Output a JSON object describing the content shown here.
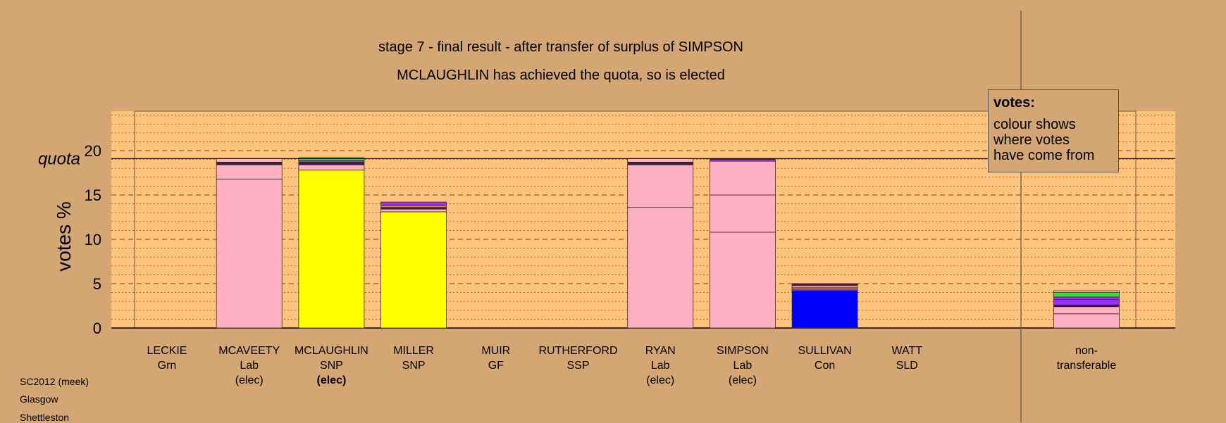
{
  "chart_data": {
    "type": "bar",
    "stacked": true,
    "title": "stage 7 - final result - after transfer of surplus of SIMPSON",
    "subtitle": "MCLAUGHLIN has achieved the quota, so is elected",
    "ylabel": "votes %",
    "ylim": [
      0,
      24
    ],
    "yticks": [
      0,
      5,
      10,
      15,
      20
    ],
    "quota": 19.1,
    "quota_label": "quota",
    "grid": true,
    "colors": {
      "Lab": "#ffafc3",
      "SNP": "#ffff00",
      "Con": "#0000ff",
      "dark": "#3a1a50",
      "purple": "#9b30ff",
      "green": "#33dd33",
      "orange": "#ff7f3a"
    },
    "candidates": [
      {
        "name": "LECKIE",
        "party": "Grn",
        "status": "",
        "segments": []
      },
      {
        "name": "MCAVEETY",
        "party": "Lab",
        "status": "(elec)",
        "status_bold": false,
        "segments": [
          {
            "from": "Lab",
            "value": 16.8
          },
          {
            "from": "Lab",
            "value": 1.6
          },
          {
            "from": "dark",
            "value": 0.3
          },
          {
            "from": "Lab",
            "value": 0.4
          }
        ]
      },
      {
        "name": "MCLAUGHLIN",
        "party": "SNP",
        "status": "(elec)",
        "status_bold": true,
        "segments": [
          {
            "from": "SNP",
            "value": 17.8
          },
          {
            "from": "Lab",
            "value": 0.6
          },
          {
            "from": "dark",
            "value": 0.3
          },
          {
            "from": "purple",
            "value": 0.2
          },
          {
            "from": "green",
            "value": 0.3
          }
        ]
      },
      {
        "name": "MILLER",
        "party": "SNP",
        "status": "",
        "segments": [
          {
            "from": "SNP",
            "value": 13.1
          },
          {
            "from": "Lab",
            "value": 0.3
          },
          {
            "from": "dark",
            "value": 0.2
          },
          {
            "from": "orange",
            "value": 0.2
          },
          {
            "from": "purple",
            "value": 0.4
          }
        ]
      },
      {
        "name": "MUIR",
        "party": "GF",
        "status": "",
        "segments": []
      },
      {
        "name": "RUTHERFORD",
        "party": "SSP",
        "status": "",
        "segments": []
      },
      {
        "name": "RYAN",
        "party": "Lab",
        "status": "(elec)",
        "status_bold": false,
        "segments": [
          {
            "from": "Lab",
            "value": 13.6
          },
          {
            "from": "Lab",
            "value": 4.8
          },
          {
            "from": "dark",
            "value": 0.3
          },
          {
            "from": "Lab",
            "value": 0.4
          }
        ]
      },
      {
        "name": "SIMPSON",
        "party": "Lab",
        "status": "(elec)",
        "status_bold": false,
        "segments": [
          {
            "from": "Lab",
            "value": 10.8
          },
          {
            "from": "Lab",
            "value": 4.2
          },
          {
            "from": "Lab",
            "value": 3.8
          },
          {
            "from": "purple",
            "value": 0.2
          },
          {
            "from": "dark",
            "value": 0.1
          }
        ]
      },
      {
        "name": "SULLIVAN",
        "party": "Con",
        "status": "",
        "segments": [
          {
            "from": "Con",
            "value": 4.2
          },
          {
            "from": "purple",
            "value": 0.2
          },
          {
            "from": "orange",
            "value": 0.2
          },
          {
            "from": "Lab",
            "value": 0.2
          },
          {
            "from": "dark",
            "value": 0.2
          }
        ]
      },
      {
        "name": "WATT",
        "party": "SLD",
        "status": "",
        "segments": []
      }
    ],
    "nontransferable": {
      "label_line1": "non-",
      "label_line2": "transferable",
      "segments": [
        {
          "from": "Lab",
          "value": 1.6
        },
        {
          "from": "Lab",
          "value": 0.8
        },
        {
          "from": "dark",
          "value": 0.2
        },
        {
          "from": "purple",
          "value": 0.6
        },
        {
          "from": "purple",
          "value": 0.3
        },
        {
          "from": "green",
          "value": 0.5
        },
        {
          "from": "Lab",
          "value": 0.2
        }
      ]
    }
  },
  "legend": {
    "title": "votes:",
    "lines": [
      "colour shows",
      "where votes",
      "have come from"
    ]
  },
  "meta": {
    "election": "SC2012 (meek)",
    "council": "Glasgow",
    "ward": "Shettleston"
  }
}
